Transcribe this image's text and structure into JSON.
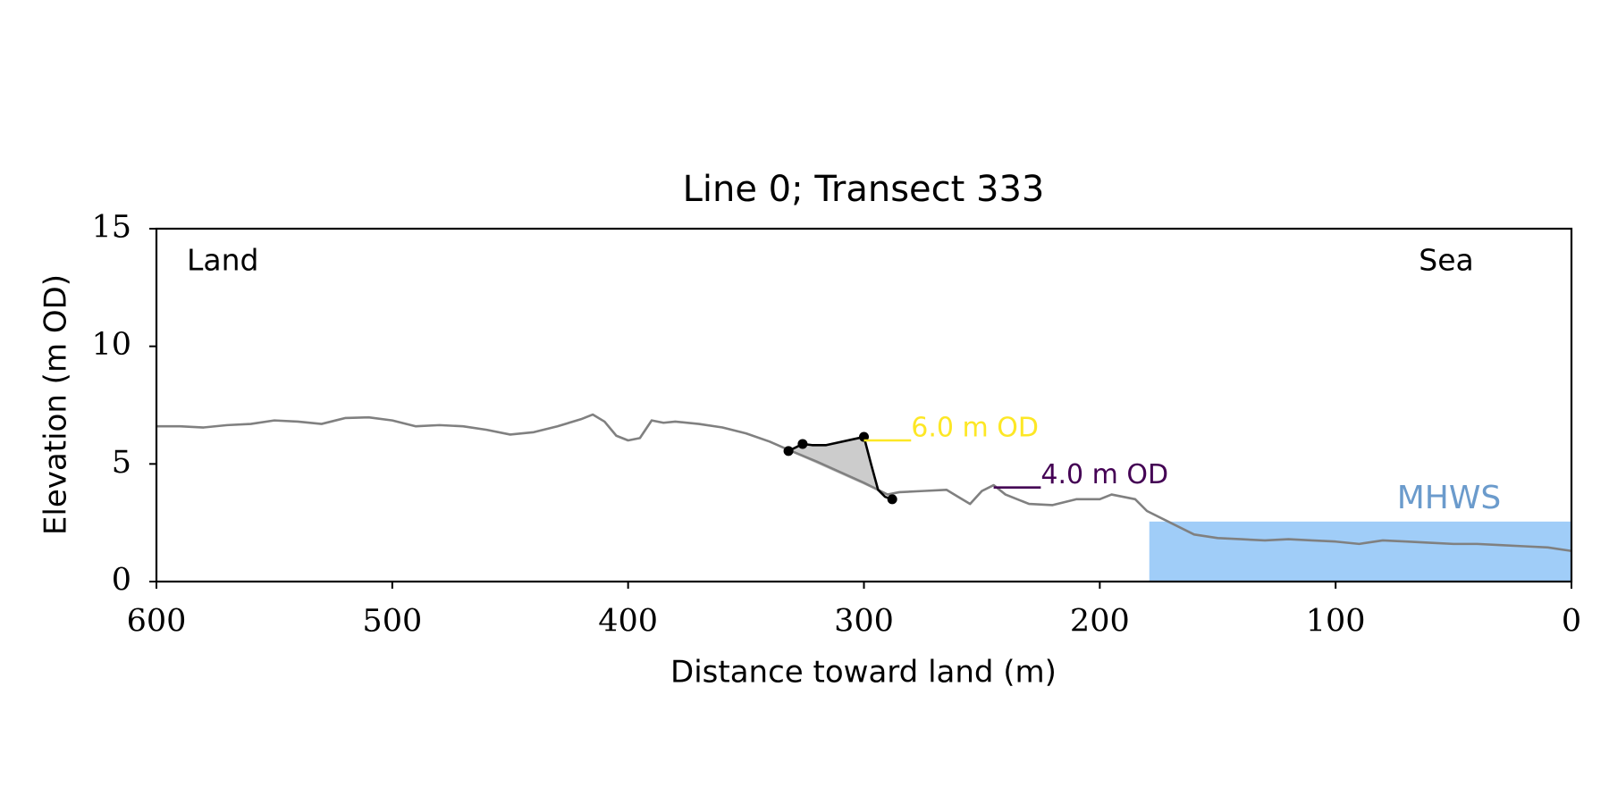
{
  "chart_data": {
    "type": "line",
    "title": "Line 0; Transect 333",
    "xlabel": "Distance toward land (m)",
    "ylabel": "Elevation (m OD)",
    "xlim": [
      600,
      0
    ],
    "ylim": [
      0,
      15
    ],
    "xticks": [
      600,
      500,
      400,
      300,
      200,
      100,
      0
    ],
    "yticks": [
      0,
      5,
      10,
      15
    ],
    "annotations": [
      "Land",
      "Sea"
    ],
    "series": [
      {
        "color": "#808080",
        "style": "line",
        "x": [
          600,
          590,
          580,
          570,
          560,
          550,
          540,
          530,
          520,
          510,
          500,
          490,
          480,
          470,
          460,
          450,
          440,
          430,
          420,
          415,
          410,
          405,
          400,
          395,
          390,
          385,
          380,
          370,
          360,
          350,
          340,
          332,
          320,
          310,
          300,
          294,
          290,
          285,
          275,
          265,
          260,
          255,
          250,
          245,
          240,
          230,
          220,
          210,
          200,
          195,
          185,
          180,
          170,
          160,
          150,
          140,
          130,
          120,
          110,
          100,
          90,
          80,
          70,
          60,
          50,
          40,
          30,
          20,
          10,
          0
        ],
        "values": [
          6.6,
          6.6,
          6.55,
          6.65,
          6.7,
          6.85,
          6.8,
          6.7,
          6.95,
          6.98,
          6.85,
          6.6,
          6.65,
          6.6,
          6.45,
          6.25,
          6.35,
          6.6,
          6.9,
          7.1,
          6.8,
          6.2,
          6.0,
          6.1,
          6.85,
          6.75,
          6.8,
          6.7,
          6.55,
          6.3,
          5.95,
          5.6,
          5.1,
          4.65,
          4.2,
          3.9,
          3.7,
          3.8,
          3.85,
          3.9,
          3.6,
          3.3,
          3.85,
          4.1,
          3.7,
          3.3,
          3.25,
          3.5,
          3.5,
          3.7,
          3.5,
          3.0,
          2.5,
          2.0,
          1.85,
          1.8,
          1.75,
          1.8,
          1.75,
          1.7,
          1.6,
          1.75,
          1.7,
          1.65,
          1.6,
          1.6,
          1.55,
          1.5,
          1.45,
          1.3
        ]
      },
      {
        "color": "#000000",
        "style": "line",
        "x": [
          332,
          326,
          322,
          316,
          300,
          297,
          294,
          291,
          288
        ],
        "values": [
          5.55,
          5.85,
          5.8,
          5.8,
          6.15,
          5.0,
          3.9,
          3.6,
          3.5
        ]
      },
      {
        "color": "#000000",
        "style": "points",
        "x": [
          332,
          326,
          300,
          288
        ],
        "values": [
          5.55,
          5.85,
          6.15,
          3.5
        ]
      }
    ],
    "fill_area": {
      "color": "#cccccc",
      "x": [
        332,
        326,
        322,
        316,
        300,
        297,
        294
      ],
      "values": [
        5.55,
        5.85,
        5.8,
        5.8,
        6.15,
        5.0,
        3.85
      ]
    },
    "contours": [
      {
        "label": "6.0 m OD",
        "value": 6.0,
        "x": [
          300,
          280
        ],
        "color": "#fde725"
      },
      {
        "label": "4.0 m OD",
        "value": 4.0,
        "x": [
          245,
          225
        ],
        "color": "#440154"
      }
    ],
    "mhws": {
      "label": "MHWS",
      "value": 2.55,
      "x": [
        179,
        0
      ],
      "color": "#a0cdf8",
      "label_color": "#6b9bcc"
    }
  }
}
